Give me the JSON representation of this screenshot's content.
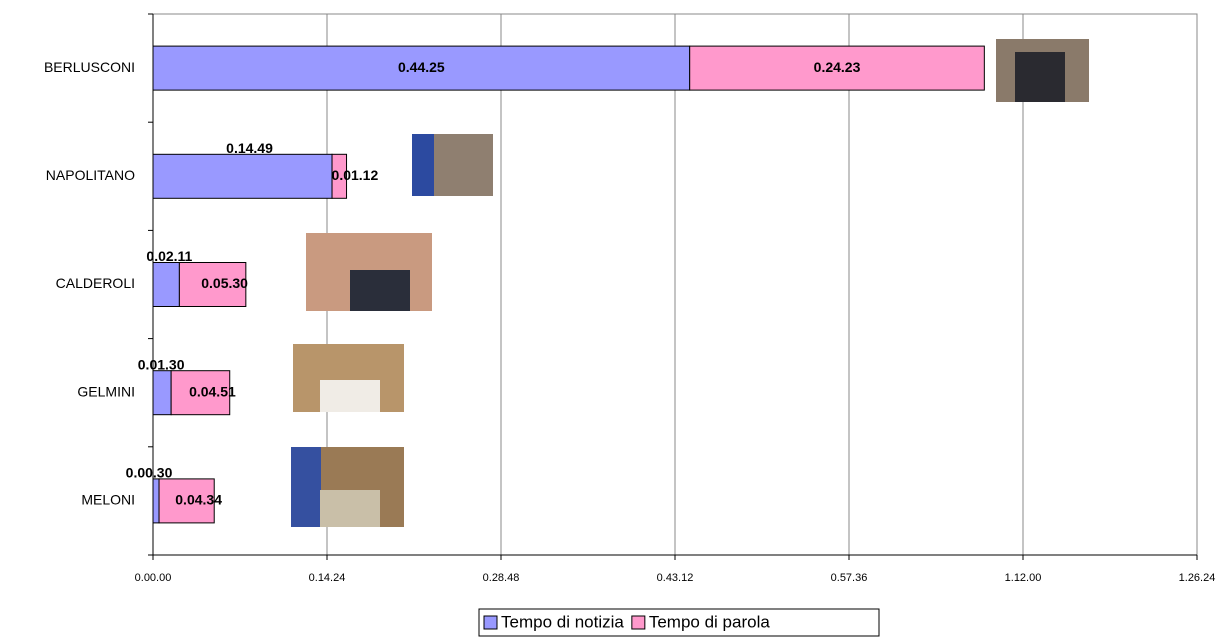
{
  "chart_data": {
    "type": "stacked-barh",
    "categories": [
      "BERLUSCONI",
      "NAPOLITANO",
      "CALDEROLI",
      "GELMINI",
      "MELONI"
    ],
    "series": [
      {
        "name": "Tempo di notizia",
        "color": "#9999ff",
        "values": [
          2665,
          889,
          131,
          90,
          30
        ],
        "value_labels": [
          "0.44.25",
          "0.14.49",
          "0.02.11",
          "0.01.30",
          "0.00.30"
        ]
      },
      {
        "name": "Tempo di parola",
        "color": "#ff99cc",
        "values": [
          1463,
          72,
          330,
          291,
          274
        ],
        "value_labels": [
          "0.24.23",
          "0.01.12",
          "0.05.30",
          "0.04.51",
          "0.04.34"
        ]
      }
    ],
    "xlim": [
      0,
      5184
    ],
    "xticks": [
      {
        "value": 0,
        "label": "0.00.00"
      },
      {
        "value": 864,
        "label": "0.14.24"
      },
      {
        "value": 1728,
        "label": "0.28.48"
      },
      {
        "value": 2592,
        "label": "0.43.12"
      },
      {
        "value": 3456,
        "label": "0.57.36"
      },
      {
        "value": 4320,
        "label": "1.12.00"
      },
      {
        "value": 5184,
        "label": "1.26.24"
      }
    ],
    "grid": true,
    "legend": "bottom"
  }
}
